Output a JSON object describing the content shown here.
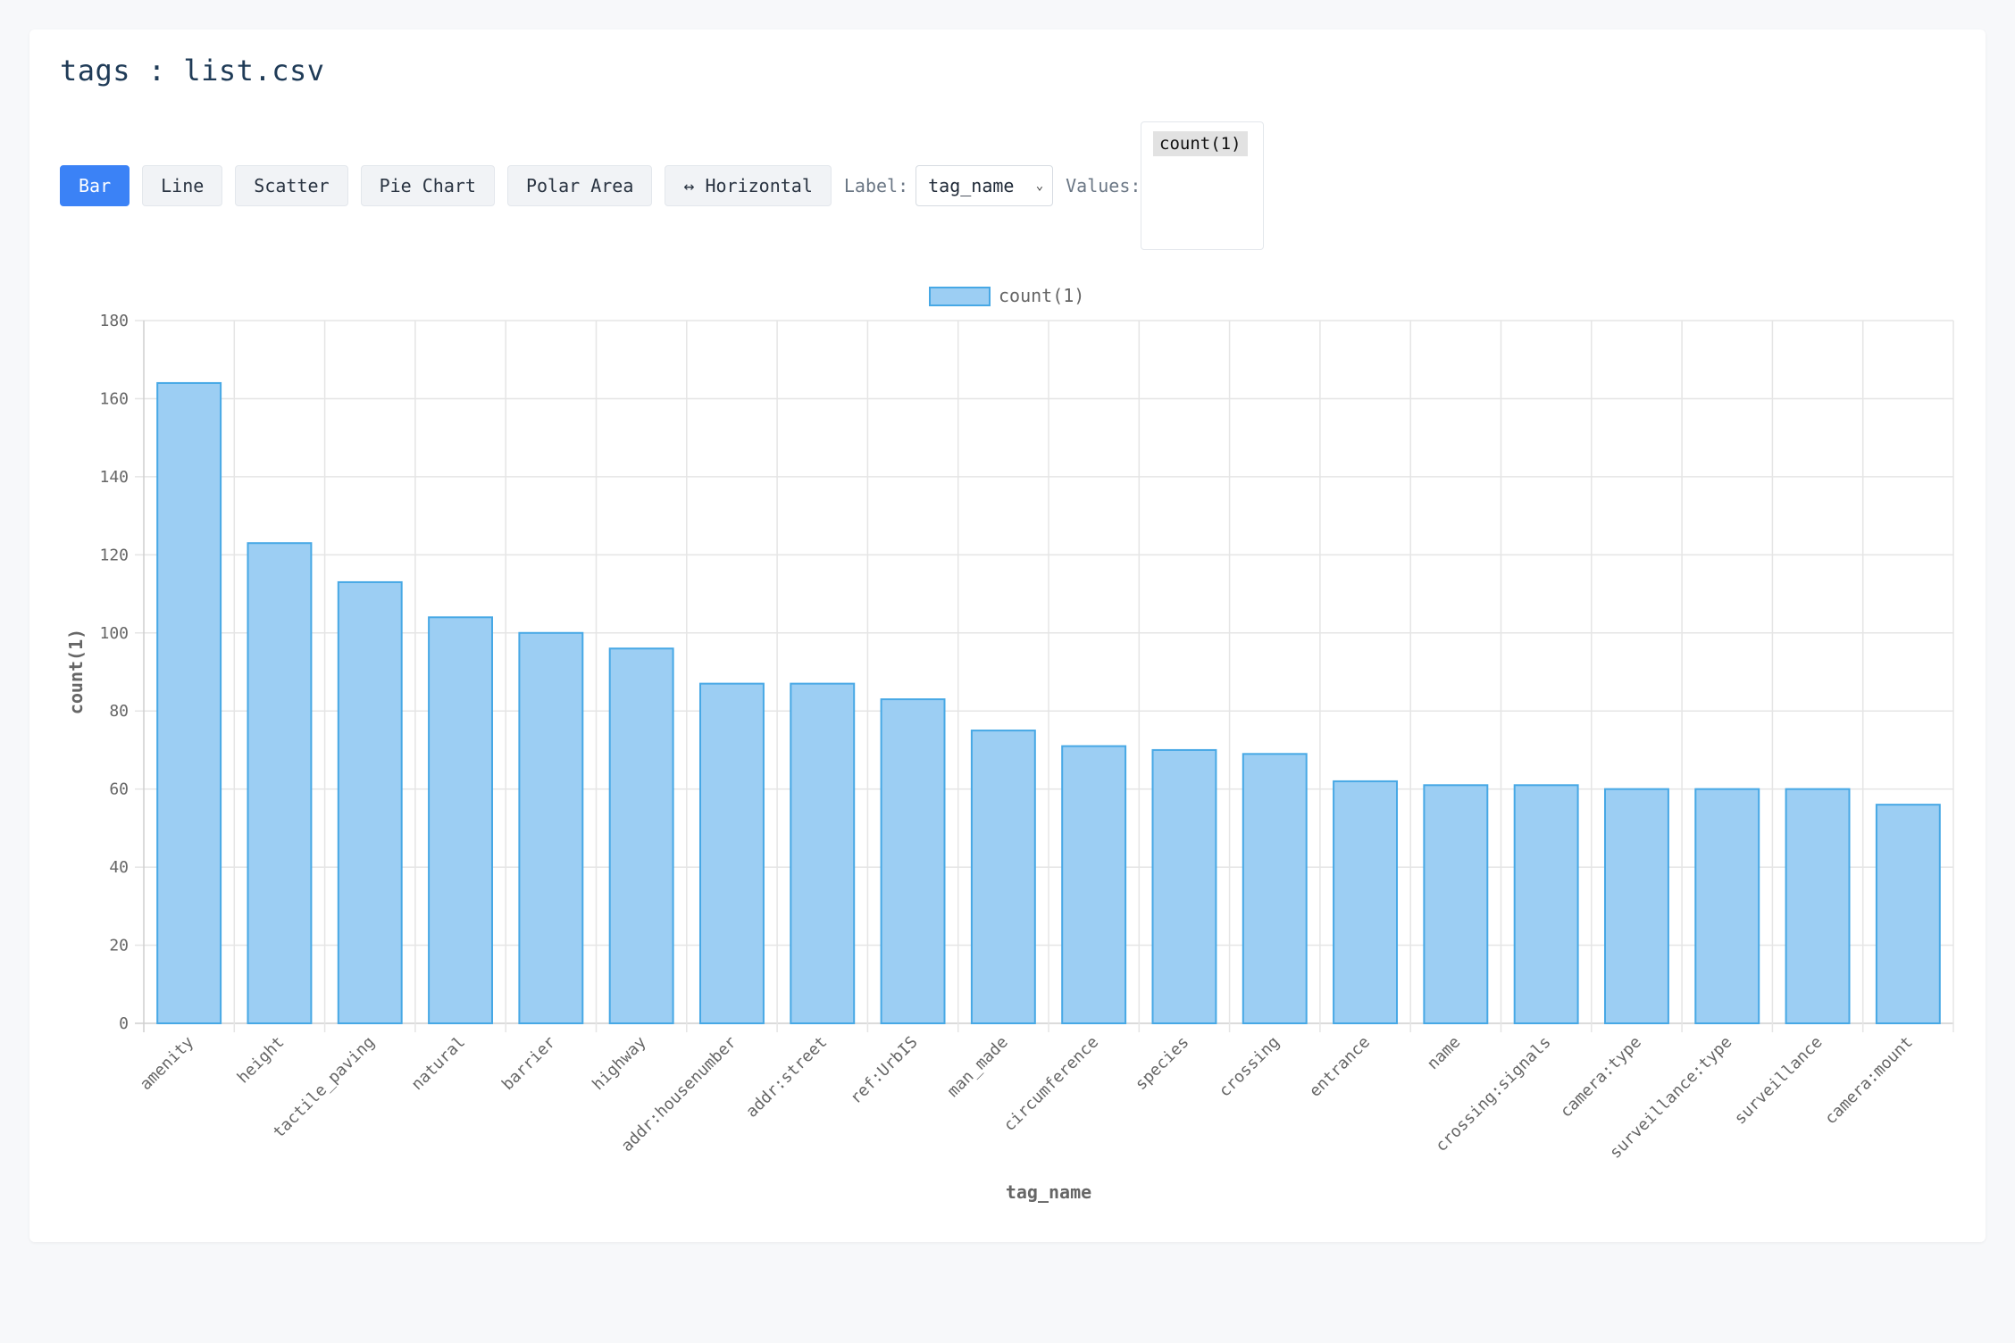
{
  "page": {
    "title": "tags : list.csv"
  },
  "toolbar": {
    "buttons": [
      {
        "label": "Bar",
        "active": true
      },
      {
        "label": "Line",
        "active": false
      },
      {
        "label": "Scatter",
        "active": false
      },
      {
        "label": "Pie Chart",
        "active": false
      },
      {
        "label": "Polar Area",
        "active": false
      },
      {
        "label": "↔ Horizontal",
        "active": false
      }
    ],
    "label_text": "Label:",
    "label_select_value": "tag_name",
    "values_text": "Values:",
    "values_options": [
      "count(1)"
    ]
  },
  "colors": {
    "accent": "#3b82f6",
    "bar_fill": "#9ccef3",
    "bar_stroke": "#47a8e5"
  },
  "chart_data": {
    "type": "bar",
    "legend": "count(1)",
    "legend_position": "top",
    "xlabel": "tag_name",
    "ylabel": "count(1)",
    "ylim": [
      0,
      180
    ],
    "yticks": [
      0,
      20,
      40,
      60,
      80,
      100,
      120,
      140,
      160,
      180
    ],
    "grid": true,
    "categories": [
      "amenity",
      "height",
      "tactile_paving",
      "natural",
      "barrier",
      "highway",
      "addr:housenumber",
      "addr:street",
      "ref:UrbIS",
      "man_made",
      "circumference",
      "species",
      "crossing",
      "entrance",
      "name",
      "crossing:signals",
      "camera:type",
      "surveillance:type",
      "surveillance",
      "camera:mount"
    ],
    "series": [
      {
        "name": "count(1)",
        "values": [
          164,
          123,
          113,
          104,
          100,
          96,
          87,
          87,
          83,
          75,
          71,
          70,
          69,
          62,
          61,
          61,
          60,
          60,
          60,
          56
        ]
      }
    ]
  }
}
